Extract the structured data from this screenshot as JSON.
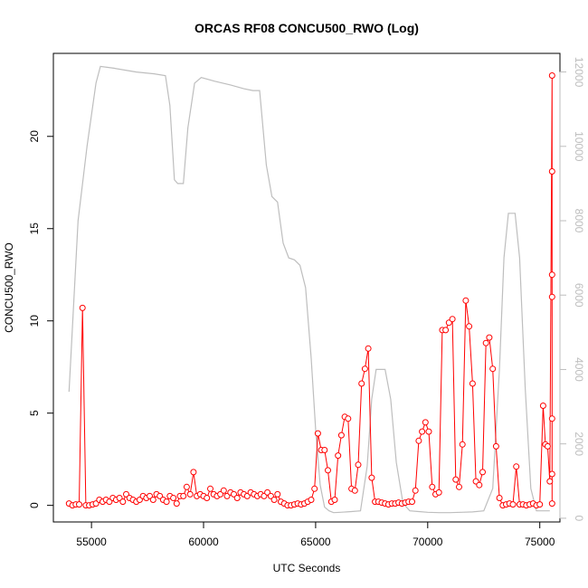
{
  "chart_data": {
    "type": "line",
    "title": "ORCAS RF08 CONCU500_RWO (Log)",
    "xlabel": "UTC Seconds",
    "ylabel": "CONCU500_RWO",
    "xlim": [
      53300,
      75900
    ],
    "ylim": [
      -0.9,
      24.5
    ],
    "y2lim": [
      -100,
      12500
    ],
    "x_ticks": [
      55000,
      60000,
      65000,
      70000,
      75000
    ],
    "y_ticks": [
      0,
      5,
      10,
      15,
      20
    ],
    "y2_ticks": [
      0,
      2000,
      4000,
      6000,
      8000,
      10000,
      12000
    ],
    "x_tick_labels": [
      "55000",
      "60000",
      "65000",
      "70000",
      "75000"
    ],
    "y_tick_labels": [
      "0",
      "5",
      "10",
      "15",
      "20"
    ],
    "y2_tick_labels": [
      "0",
      "2000",
      "4000",
      "6000",
      "8000",
      "10000",
      "12000"
    ],
    "grid": false,
    "legend": "none",
    "colors": {
      "series": "#ff0000",
      "background_series": "#bebebe",
      "axis": "#000000",
      "right_axis": "#bdbdbd"
    },
    "series": [
      {
        "color": "#ff0000",
        "marker": "open-circle",
        "points": [
          [
            54000,
            0.1
          ],
          [
            54150,
            0
          ],
          [
            54300,
            0.05
          ],
          [
            54450,
            0.05
          ],
          [
            54600,
            10.7
          ],
          [
            54750,
            0
          ],
          [
            54900,
            0
          ],
          [
            55050,
            0.05
          ],
          [
            55200,
            0.1
          ],
          [
            55350,
            0.3
          ],
          [
            55500,
            0.2
          ],
          [
            55650,
            0.3
          ],
          [
            55800,
            0.2
          ],
          [
            55950,
            0.4
          ],
          [
            56100,
            0.3
          ],
          [
            56250,
            0.4
          ],
          [
            56400,
            0.2
          ],
          [
            56550,
            0.6
          ],
          [
            56700,
            0.4
          ],
          [
            56850,
            0.3
          ],
          [
            57000,
            0.2
          ],
          [
            57150,
            0.3
          ],
          [
            57300,
            0.5
          ],
          [
            57450,
            0.4
          ],
          [
            57600,
            0.5
          ],
          [
            57750,
            0.3
          ],
          [
            57900,
            0.6
          ],
          [
            58050,
            0.5
          ],
          [
            58200,
            0.3
          ],
          [
            58350,
            0.2
          ],
          [
            58500,
            0.5
          ],
          [
            58650,
            0.4
          ],
          [
            58800,
            0.1
          ],
          [
            58950,
            0.5
          ],
          [
            59100,
            0.5
          ],
          [
            59250,
            1
          ],
          [
            59400,
            0.6
          ],
          [
            59550,
            1.8
          ],
          [
            59700,
            0.5
          ],
          [
            59850,
            0.6
          ],
          [
            60000,
            0.5
          ],
          [
            60150,
            0.4
          ],
          [
            60300,
            0.9
          ],
          [
            60450,
            0.6
          ],
          [
            60600,
            0.5
          ],
          [
            60750,
            0.6
          ],
          [
            60900,
            0.8
          ],
          [
            61050,
            0.5
          ],
          [
            61200,
            0.7
          ],
          [
            61350,
            0.6
          ],
          [
            61500,
            0.4
          ],
          [
            61650,
            0.7
          ],
          [
            61800,
            0.6
          ],
          [
            61950,
            0.5
          ],
          [
            62100,
            0.7
          ],
          [
            62250,
            0.6
          ],
          [
            62400,
            0.5
          ],
          [
            62550,
            0.6
          ],
          [
            62700,
            0.5
          ],
          [
            62850,
            0.7
          ],
          [
            63000,
            0.5
          ],
          [
            63150,
            0.3
          ],
          [
            63300,
            0.6
          ],
          [
            63450,
            0.2
          ],
          [
            63600,
            0.1
          ],
          [
            63750,
            0
          ],
          [
            63900,
            0
          ],
          [
            64050,
            0.05
          ],
          [
            64200,
            0.1
          ],
          [
            64350,
            0.05
          ],
          [
            64500,
            0.1
          ],
          [
            64650,
            0.2
          ],
          [
            64800,
            0.3
          ],
          [
            64950,
            0.9
          ],
          [
            65100,
            3.9
          ],
          [
            65250,
            3
          ],
          [
            65400,
            3
          ],
          [
            65550,
            1.9
          ],
          [
            65700,
            0.2
          ],
          [
            65850,
            0.3
          ],
          [
            66000,
            2.7
          ],
          [
            66150,
            3.8
          ],
          [
            66300,
            4.8
          ],
          [
            66450,
            4.7
          ],
          [
            66600,
            0.9
          ],
          [
            66750,
            0.8
          ],
          [
            66900,
            2.2
          ],
          [
            67050,
            6.6
          ],
          [
            67200,
            7.4
          ],
          [
            67350,
            8.5
          ],
          [
            67500,
            1.5
          ],
          [
            67650,
            0.2
          ],
          [
            67800,
            0.2
          ],
          [
            67950,
            0.15
          ],
          [
            68100,
            0.1
          ],
          [
            68250,
            0.05
          ],
          [
            68400,
            0.1
          ],
          [
            68550,
            0.1
          ],
          [
            68700,
            0.15
          ],
          [
            68850,
            0.1
          ],
          [
            69000,
            0.15
          ],
          [
            69150,
            0.2
          ],
          [
            69300,
            0.2
          ],
          [
            69450,
            0.8
          ],
          [
            69600,
            3.5
          ],
          [
            69750,
            4
          ],
          [
            69900,
            4.5
          ],
          [
            70050,
            4
          ],
          [
            70200,
            1
          ],
          [
            70350,
            0.6
          ],
          [
            70500,
            0.7
          ],
          [
            70650,
            9.5
          ],
          [
            70800,
            9.5
          ],
          [
            70950,
            9.9
          ],
          [
            71100,
            10.1
          ],
          [
            71250,
            1.4
          ],
          [
            71400,
            1
          ],
          [
            71550,
            3.3
          ],
          [
            71700,
            11.1
          ],
          [
            71850,
            9.7
          ],
          [
            72000,
            6.6
          ],
          [
            72150,
            1.3
          ],
          [
            72300,
            1.1
          ],
          [
            72450,
            1.8
          ],
          [
            72600,
            8.8
          ],
          [
            72750,
            9.1
          ],
          [
            72900,
            7.4
          ],
          [
            73050,
            3.2
          ],
          [
            73200,
            0.4
          ],
          [
            73350,
            0
          ],
          [
            73500,
            0.05
          ],
          [
            73650,
            0.1
          ],
          [
            73800,
            0.05
          ],
          [
            73950,
            2.1
          ],
          [
            74100,
            0.05
          ],
          [
            74250,
            0.05
          ],
          [
            74400,
            0
          ],
          [
            74550,
            0.05
          ],
          [
            74700,
            0.1
          ],
          [
            74850,
            0
          ],
          [
            75000,
            0.05
          ],
          [
            75150,
            5.4
          ],
          [
            75250,
            3.3
          ],
          [
            75350,
            3.2
          ],
          [
            75450,
            1.3
          ],
          [
            75550,
            23.3
          ],
          [
            75650,
            18.1
          ],
          [
            75750,
            12.5
          ],
          [
            75850,
            11.3
          ],
          [
            75950,
            1.7
          ],
          [
            76050,
            0.1
          ],
          [
            76150,
            4.7
          ]
        ]
      },
      {
        "color": "#bebebe",
        "axis": "right",
        "marker": "none",
        "points": [
          [
            54000,
            3400
          ],
          [
            54400,
            8000
          ],
          [
            54800,
            10000
          ],
          [
            55200,
            11700
          ],
          [
            55400,
            12150
          ],
          [
            56000,
            12100
          ],
          [
            57000,
            12000
          ],
          [
            57800,
            11950
          ],
          [
            58300,
            11900
          ],
          [
            58500,
            11100
          ],
          [
            58700,
            9100
          ],
          [
            58850,
            9000
          ],
          [
            59100,
            9000
          ],
          [
            59300,
            10500
          ],
          [
            59600,
            11700
          ],
          [
            59900,
            11850
          ],
          [
            60500,
            11750
          ],
          [
            61200,
            11650
          ],
          [
            61800,
            11550
          ],
          [
            62200,
            11500
          ],
          [
            62500,
            11500
          ],
          [
            62800,
            9500
          ],
          [
            63050,
            8650
          ],
          [
            63300,
            8500
          ],
          [
            63550,
            7400
          ],
          [
            63800,
            7000
          ],
          [
            64050,
            6950
          ],
          [
            64300,
            6800
          ],
          [
            64550,
            6200
          ],
          [
            64800,
            4300
          ],
          [
            65000,
            2400
          ],
          [
            65200,
            900
          ],
          [
            65400,
            300
          ],
          [
            65600,
            200
          ],
          [
            65800,
            150
          ],
          [
            66100,
            160
          ],
          [
            66600,
            180
          ],
          [
            67000,
            200
          ],
          [
            67300,
            1400
          ],
          [
            67500,
            3200
          ],
          [
            67700,
            4000
          ],
          [
            68100,
            4000
          ],
          [
            68350,
            3200
          ],
          [
            68600,
            1500
          ],
          [
            68900,
            400
          ],
          [
            69200,
            200
          ],
          [
            69600,
            180
          ],
          [
            70000,
            160
          ],
          [
            70500,
            150
          ],
          [
            71000,
            150
          ],
          [
            71500,
            160
          ],
          [
            72000,
            170
          ],
          [
            72500,
            200
          ],
          [
            72900,
            800
          ],
          [
            73200,
            4000
          ],
          [
            73400,
            7000
          ],
          [
            73600,
            8200
          ],
          [
            73900,
            8200
          ],
          [
            74100,
            7000
          ],
          [
            74350,
            3500
          ],
          [
            74600,
            800
          ],
          [
            74850,
            200
          ],
          [
            75150,
            200
          ],
          [
            75450,
            200
          ],
          [
            75700,
            200
          ],
          [
            75950,
            200
          ],
          [
            76100,
            200
          ]
        ]
      }
    ]
  }
}
